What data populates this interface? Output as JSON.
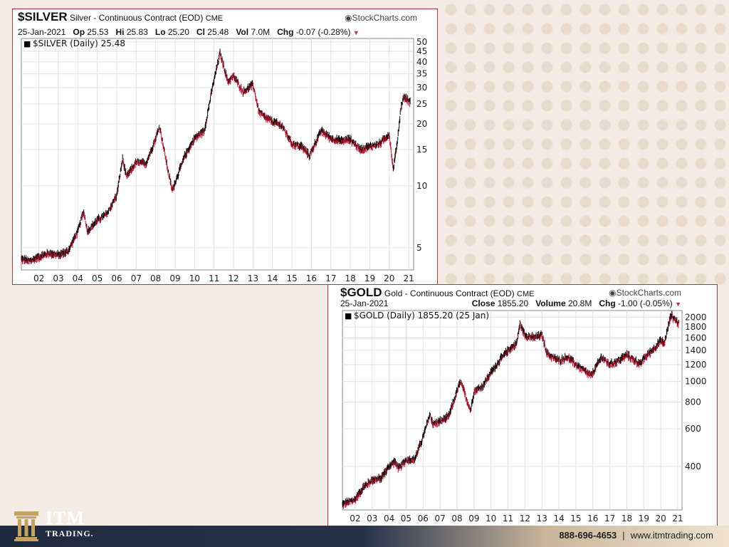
{
  "silver": {
    "symbol": "$SILVER",
    "description": "Silver - Continuous Contract (EOD)",
    "exchange": "CME",
    "source": "StockCharts.com",
    "date": "25-Jan-2021",
    "op_label": "Op",
    "op": "25.53",
    "hi_label": "Hi",
    "hi": "25.83",
    "lo_label": "Lo",
    "lo": "25.20",
    "cl_label": "Cl",
    "cl": "25.48",
    "vol_label": "Vol",
    "vol": "7.0M",
    "chg_label": "Chg",
    "chg": "-0.07 (-0.28%)",
    "legend": "$SILVER (Daily) 25.48"
  },
  "gold": {
    "symbol": "$GOLD",
    "description": "Gold - Continuous Contract (EOD)",
    "exchange": "CME",
    "source": "StockCharts.com",
    "date": "25-Jan-2021",
    "close_label": "Close",
    "close": "1855.20",
    "volume_label": "Volume",
    "volume": "20.8M",
    "chg_label": "Chg",
    "chg": "-1.00 (-0.05%)",
    "legend": "$GOLD (Daily) 1855.20 (25 Jan)"
  },
  "footer": {
    "logo_itm": "ITM",
    "logo_trading": "TRADING.",
    "phone": "888-696-4653",
    "separator": "|",
    "website": "www.itmtrading.com"
  },
  "colors": {
    "up_bar": "#000000",
    "down_bar": "#c8102e",
    "panel_border": "#b5343a",
    "grid": "#e0e0e0",
    "logo_gold": "#c8a15a"
  },
  "chart_data": [
    {
      "type": "line",
      "title": "$SILVER Silver - Continuous Contract (EOD) CME",
      "series_name": "$SILVER (Daily)",
      "y_scale": "log",
      "ylim": [
        3.9,
        52
      ],
      "y_ticks": [
        5,
        10,
        15,
        20,
        25,
        30,
        35,
        40,
        45,
        50
      ],
      "x_tick_labels": [
        "02",
        "03",
        "04",
        "05",
        "06",
        "07",
        "08",
        "09",
        "10",
        "11",
        "12",
        "13",
        "14",
        "15",
        "16",
        "17",
        "18",
        "19",
        "20",
        "21"
      ],
      "x_ticks": [
        2002,
        2003,
        2004,
        2005,
        2006,
        2007,
        2008,
        2009,
        2010,
        2011,
        2012,
        2013,
        2014,
        2015,
        2016,
        2017,
        2018,
        2019,
        2020,
        2021
      ],
      "xlim": [
        2001.1,
        2021.25
      ],
      "x": [
        2001.1,
        2001.5,
        2002.0,
        2002.5,
        2003.0,
        2003.5,
        2004.0,
        2004.3,
        2004.5,
        2005.0,
        2005.5,
        2006.0,
        2006.3,
        2006.5,
        2007.0,
        2007.5,
        2008.0,
        2008.2,
        2008.7,
        2008.85,
        2009.5,
        2010.0,
        2010.5,
        2010.9,
        2011.3,
        2011.5,
        2011.7,
        2012.0,
        2012.5,
        2013.0,
        2013.3,
        2013.6,
        2014.0,
        2014.5,
        2015.0,
        2015.5,
        2015.9,
        2016.5,
        2017.0,
        2017.5,
        2018.0,
        2018.5,
        2019.0,
        2019.5,
        2020.0,
        2020.2,
        2020.4,
        2020.6,
        2020.75,
        2021.07
      ],
      "y": [
        4.4,
        4.3,
        4.5,
        4.7,
        4.6,
        4.8,
        6.0,
        7.5,
        6.0,
        6.8,
        7.3,
        9.0,
        13.5,
        11.0,
        13.0,
        12.8,
        17.0,
        19.5,
        11.0,
        9.5,
        14.0,
        17.0,
        18.5,
        29.5,
        44.0,
        38.0,
        32.0,
        34.0,
        28.5,
        31.0,
        23.0,
        21.5,
        20.5,
        19.5,
        16.0,
        15.5,
        14.0,
        18.5,
        17.0,
        16.5,
        16.8,
        15.0,
        15.5,
        16.0,
        17.8,
        12.0,
        16.0,
        24.0,
        27.0,
        25.5
      ]
    },
    {
      "type": "line",
      "title": "$GOLD Gold - Continuous Contract (EOD) CME",
      "series_name": "$GOLD (Daily)",
      "y_scale": "log",
      "ylim": [
        250,
        2150
      ],
      "y_ticks": [
        400,
        600,
        800,
        1000,
        1200,
        1400,
        1600,
        1800,
        2000
      ],
      "x_tick_labels": [
        "02",
        "03",
        "04",
        "05",
        "06",
        "07",
        "08",
        "09",
        "10",
        "11",
        "12",
        "13",
        "14",
        "15",
        "16",
        "17",
        "18",
        "19",
        "20",
        "21"
      ],
      "x_ticks": [
        2002,
        2003,
        2004,
        2005,
        2006,
        2007,
        2008,
        2009,
        2010,
        2011,
        2012,
        2013,
        2014,
        2015,
        2016,
        2017,
        2018,
        2019,
        2020,
        2021
      ],
      "xlim": [
        2001.25,
        2021.25
      ],
      "x": [
        2001.25,
        2002.0,
        2002.5,
        2003.0,
        2003.5,
        2004.0,
        2004.3,
        2004.6,
        2005.0,
        2005.5,
        2006.0,
        2006.4,
        2006.6,
        2007.0,
        2007.5,
        2008.0,
        2008.2,
        2008.8,
        2009.0,
        2009.5,
        2010.0,
        2010.5,
        2011.0,
        2011.5,
        2011.7,
        2012.0,
        2012.5,
        2013.0,
        2013.3,
        2013.6,
        2014.0,
        2014.5,
        2015.0,
        2015.9,
        2016.5,
        2017.0,
        2017.5,
        2018.0,
        2018.8,
        2019.0,
        2019.5,
        2020.0,
        2020.2,
        2020.6,
        2021.07
      ],
      "y": [
        265,
        280,
        320,
        345,
        350,
        400,
        420,
        390,
        430,
        430,
        550,
        700,
        630,
        650,
        680,
        900,
        1000,
        730,
        900,
        950,
        1100,
        1250,
        1400,
        1500,
        1850,
        1650,
        1600,
        1650,
        1350,
        1300,
        1250,
        1300,
        1200,
        1060,
        1300,
        1200,
        1250,
        1330,
        1200,
        1280,
        1400,
        1550,
        1500,
        2050,
        1855
      ]
    }
  ]
}
